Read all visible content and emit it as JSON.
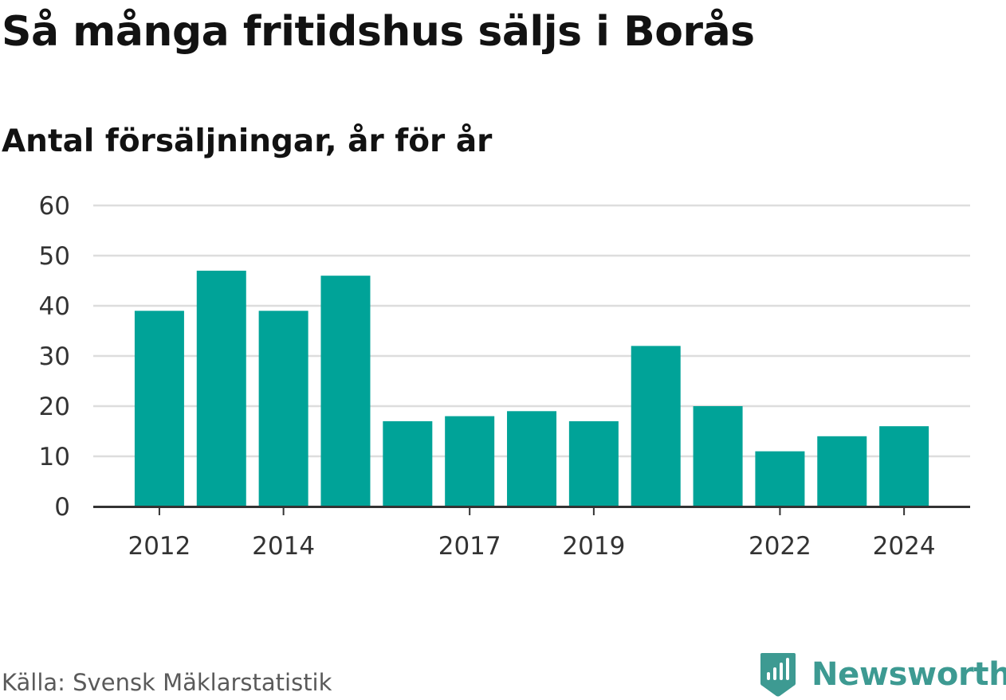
{
  "title": "Så många fritidshus säljs i Borås",
  "subtitle": "Antal försäljningar, år för år",
  "source": "Källa: Svensk Mäklarstatistik",
  "brand": {
    "name": "Newsworthy",
    "icon": "newsworthy-logo-icon",
    "color": "#3d9a92"
  },
  "colors": {
    "bar": "#00a398",
    "grid": "#dddddd",
    "axis": "#333333",
    "tick_text": "#333333"
  },
  "chart_data": {
    "type": "bar",
    "x": [
      2012,
      2013,
      2014,
      2015,
      2016,
      2017,
      2018,
      2019,
      2020,
      2021,
      2022,
      2023,
      2024
    ],
    "values": [
      39,
      47,
      39,
      46,
      17,
      18,
      19,
      17,
      32,
      20,
      11,
      14,
      16
    ],
    "x_tick_labels": [
      "2012",
      "2014",
      "2017",
      "2019",
      "2022",
      "2024"
    ],
    "y_tick_labels": [
      "0",
      "10",
      "20",
      "30",
      "40",
      "50",
      "60"
    ],
    "ylim": [
      0,
      60
    ],
    "grid": true,
    "xlabel": "",
    "ylabel": ""
  }
}
